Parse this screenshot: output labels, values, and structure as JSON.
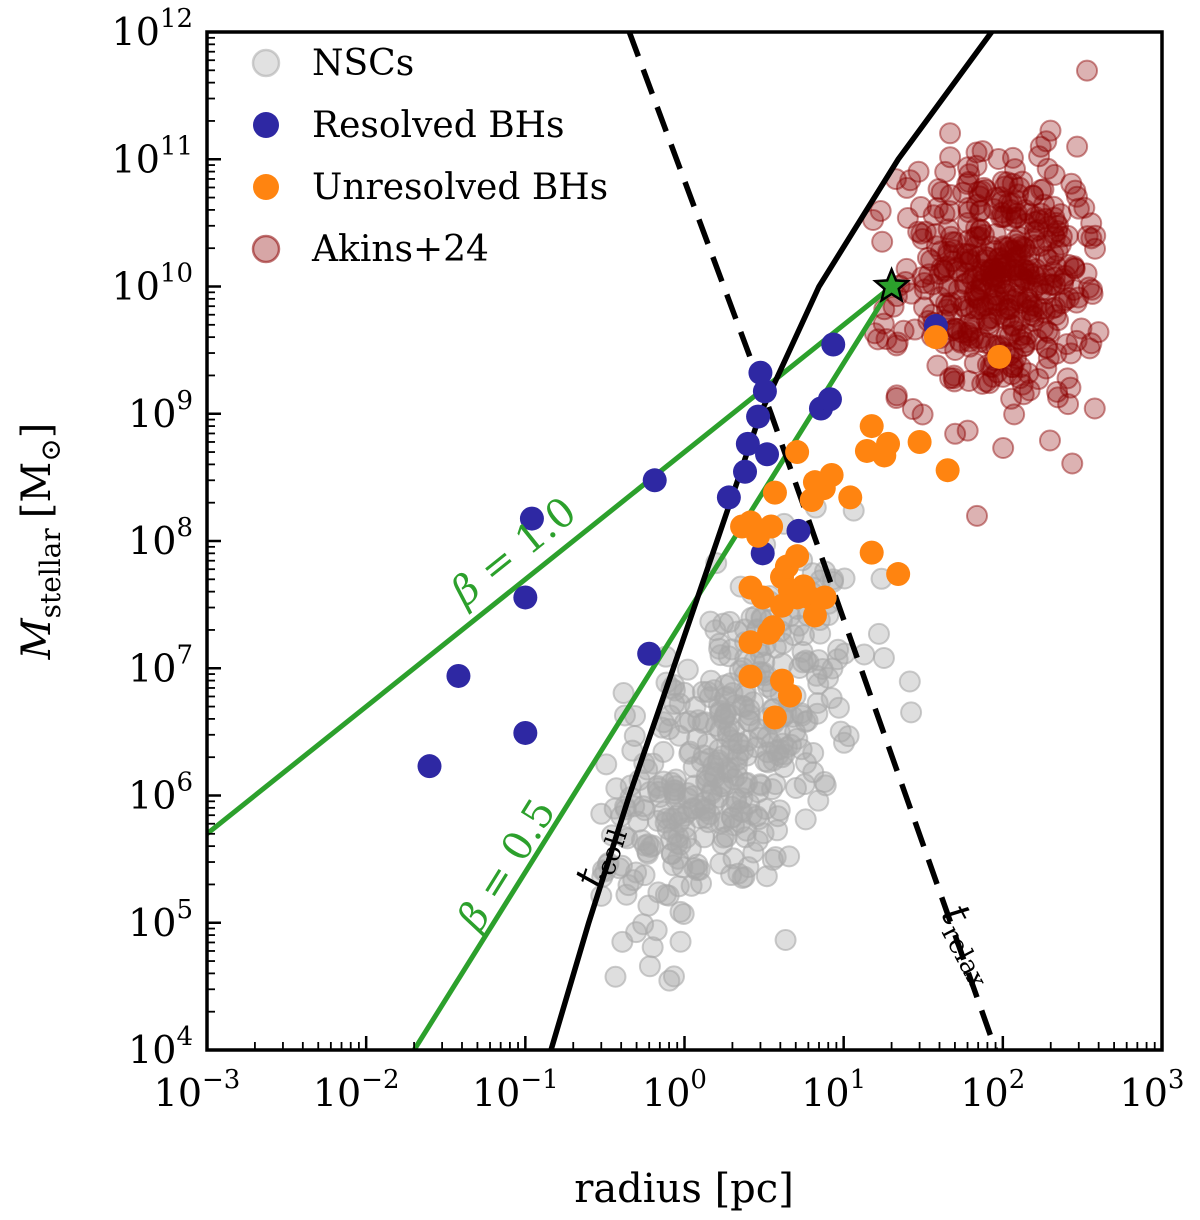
{
  "chart_data": {
    "type": "scatter",
    "xscale": "log",
    "yscale": "log",
    "xlim": [
      0.001,
      1000
    ],
    "ylim": [
      10000,
      1000000000000
    ],
    "xlabel": "radius [pc]",
    "ylabel_main": "M",
    "ylabel_sub": "stellar",
    "ylabel_unit": "[M",
    "ylabel_unit_sub": "⊙",
    "ylabel_unit_close": "]",
    "xticks": [
      {
        "label": "10",
        "exp": "−3",
        "value": 0.001
      },
      {
        "label": "10",
        "exp": "−2",
        "value": 0.01
      },
      {
        "label": "10",
        "exp": "−1",
        "value": 0.1
      },
      {
        "label": "10",
        "exp": "0",
        "value": 1
      },
      {
        "label": "10",
        "exp": "1",
        "value": 10
      },
      {
        "label": "10",
        "exp": "2",
        "value": 100
      },
      {
        "label": "10",
        "exp": "3",
        "value": 1000
      }
    ],
    "yticks": [
      {
        "label": "10",
        "exp": "4",
        "value": 10000
      },
      {
        "label": "10",
        "exp": "5",
        "value": 100000
      },
      {
        "label": "10",
        "exp": "6",
        "value": 1000000
      },
      {
        "label": "10",
        "exp": "7",
        "value": 10000000
      },
      {
        "label": "10",
        "exp": "8",
        "value": 100000000
      },
      {
        "label": "10",
        "exp": "9",
        "value": 1000000000
      },
      {
        "label": "10",
        "exp": "10",
        "value": 10000000000
      },
      {
        "label": "10",
        "exp": "11",
        "value": 100000000000
      },
      {
        "label": "10",
        "exp": "12",
        "value": 1000000000000
      }
    ],
    "legend": {
      "placement": "top-left",
      "entries": [
        {
          "label": "NSCs",
          "color": "#a9a9a9",
          "style": "faded"
        },
        {
          "label": "Resolved BHs",
          "color": "#2e28a3",
          "style": "solid"
        },
        {
          "label": "Unresolved BHs",
          "color": "#ff8410",
          "style": "solid"
        },
        {
          "label": "Akins+24",
          "color": "#8b0000",
          "style": "faded"
        }
      ]
    },
    "series": [
      {
        "name": "Resolved BHs",
        "color": "#2e28a3",
        "points": [
          [
            0.025,
            1700000.0
          ],
          [
            0.038,
            8700000.0
          ],
          [
            0.1,
            3100000.0
          ],
          [
            0.11,
            150000000.0
          ],
          [
            0.1,
            36000000.0
          ],
          [
            0.6,
            13000000.0
          ],
          [
            0.65,
            300000000.0
          ],
          [
            1.9,
            220000000.0
          ],
          [
            2.4,
            350000000.0
          ],
          [
            2.5,
            580000000.0
          ],
          [
            2.9,
            950000000.0
          ],
          [
            3.0,
            2100000000.0
          ],
          [
            3.2,
            1500000000.0
          ],
          [
            3.3,
            480000000.0
          ],
          [
            3.1,
            80000000.0
          ],
          [
            5.2,
            120000000.0
          ],
          [
            7.2,
            1100000000.0
          ],
          [
            8.2,
            1300000000.0
          ],
          [
            8.6,
            3500000000.0
          ],
          [
            38,
            4900000000.0
          ]
        ]
      },
      {
        "name": "Unresolved BHs",
        "color": "#ff8410",
        "points": [
          [
            2.3,
            130000000.0
          ],
          [
            2.6,
            140000000.0
          ],
          [
            2.9,
            110000000.0
          ],
          [
            3.5,
            130000000.0
          ],
          [
            3.7,
            240000000.0
          ],
          [
            4.1,
            52000000.0
          ],
          [
            4.4,
            63000000.0
          ],
          [
            4.6,
            41000000.0
          ],
          [
            5.1,
            36000000.0
          ],
          [
            5.6,
            44000000.0
          ],
          [
            5.1,
            500000000.0
          ],
          [
            6.3,
            210000000.0
          ],
          [
            6.6,
            290000000.0
          ],
          [
            7.5,
            260000000.0
          ],
          [
            8.4,
            330000000.0
          ],
          [
            11,
            220000000.0
          ],
          [
            2.6,
            43000000.0
          ],
          [
            3.1,
            36000000.0
          ],
          [
            3.4,
            19000000.0
          ],
          [
            2.6,
            16000000.0
          ],
          [
            3.6,
            21000000.0
          ],
          [
            4.1,
            31000000.0
          ],
          [
            6.1,
            36000000.0
          ],
          [
            6.6,
            26000000.0
          ],
          [
            7.6,
            36000000.0
          ],
          [
            2.6,
            8600000.0
          ],
          [
            4.1,
            8000000.0
          ],
          [
            4.6,
            6100000.0
          ],
          [
            3.7,
            4100000.0
          ],
          [
            5.1,
            76000000.0
          ],
          [
            15,
            81000000.0
          ],
          [
            22,
            55000000.0
          ],
          [
            14,
            510000000.0
          ],
          [
            15,
            800000000.0
          ],
          [
            18,
            470000000.0
          ],
          [
            19,
            580000000.0
          ],
          [
            30,
            600000000.0
          ],
          [
            45,
            360000000.0
          ],
          [
            38,
            4000000000.0
          ],
          [
            95,
            2800000000.0
          ]
        ]
      }
    ],
    "models": [
      {
        "name": "β = 1.0",
        "color": "#2ca02c",
        "label_value": "1.0",
        "points": [
          [
            0.001,
            500000.0
          ],
          [
            20,
            10000000000.0
          ]
        ]
      },
      {
        "name": "β = 0.5",
        "color": "#2ca02c",
        "label_value": "0.5",
        "points": [
          [
            0.02,
            10000.0
          ],
          [
            20,
            10000000000.0
          ]
        ]
      },
      {
        "name": "t_coll",
        "style": "solid",
        "color": "#000000",
        "label_base": "t",
        "label_sub": "coll",
        "points": [
          [
            0.145,
            10000.0
          ],
          [
            0.25,
            100000.0
          ],
          [
            0.45,
            1000000.0
          ],
          [
            0.85,
            10000000.0
          ],
          [
            1.6,
            100000000.0
          ],
          [
            3.0,
            1000000000.0
          ],
          [
            7.0,
            10000000000.0
          ],
          [
            22,
            100000000000.0
          ],
          [
            85,
            1000000000000.0
          ]
        ]
      },
      {
        "name": "t_relax",
        "style": "dashed",
        "color": "#000000",
        "label_base": "t",
        "label_sub": "relax",
        "points": [
          [
            0.45,
            1000000000000.0
          ],
          [
            3.5,
            1000000000.0
          ],
          [
            90,
            10000.0
          ]
        ]
      }
    ],
    "marker": {
      "name": "star",
      "x": 20,
      "y": 10000000000.0,
      "color": "#2ca02c"
    },
    "grid": false
  }
}
